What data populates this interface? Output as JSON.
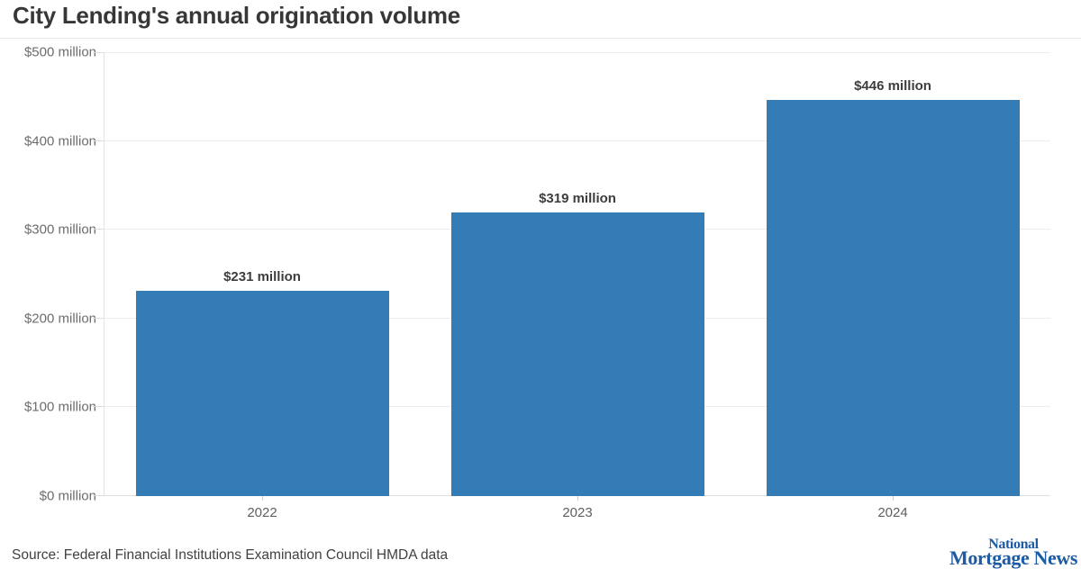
{
  "title": "City Lending's annual origination volume",
  "source": "Source: Federal Financial Institutions Examination Council HMDA data",
  "logo": {
    "line1": "National",
    "line2": "Mortgage News",
    "color": "#1d5ba5"
  },
  "colors": {
    "bar": "#337cb5",
    "gridline": "#ededed",
    "title_text": "#373737",
    "axis_label_text": "#6d6d6d",
    "bar_label_text": "#3d3d3d",
    "source_text": "#414141"
  },
  "chart_data": {
    "type": "bar",
    "title": "City Lending's annual origination volume",
    "categories": [
      "2022",
      "2023",
      "2024"
    ],
    "values": [
      231,
      319,
      446
    ],
    "bar_labels": [
      "$231 million",
      "$319 million",
      "$446 million"
    ],
    "xlabel": "",
    "ylabel": "",
    "ylim": [
      0,
      500
    ],
    "yticks": [
      0,
      100,
      200,
      300,
      400,
      500
    ],
    "ytick_labels": [
      "$0 million",
      "$100 million",
      "$200 million",
      "$300 million",
      "$400 million",
      "$500 million"
    ],
    "grid": true,
    "legend": false,
    "bar_color": "#337cb5"
  }
}
